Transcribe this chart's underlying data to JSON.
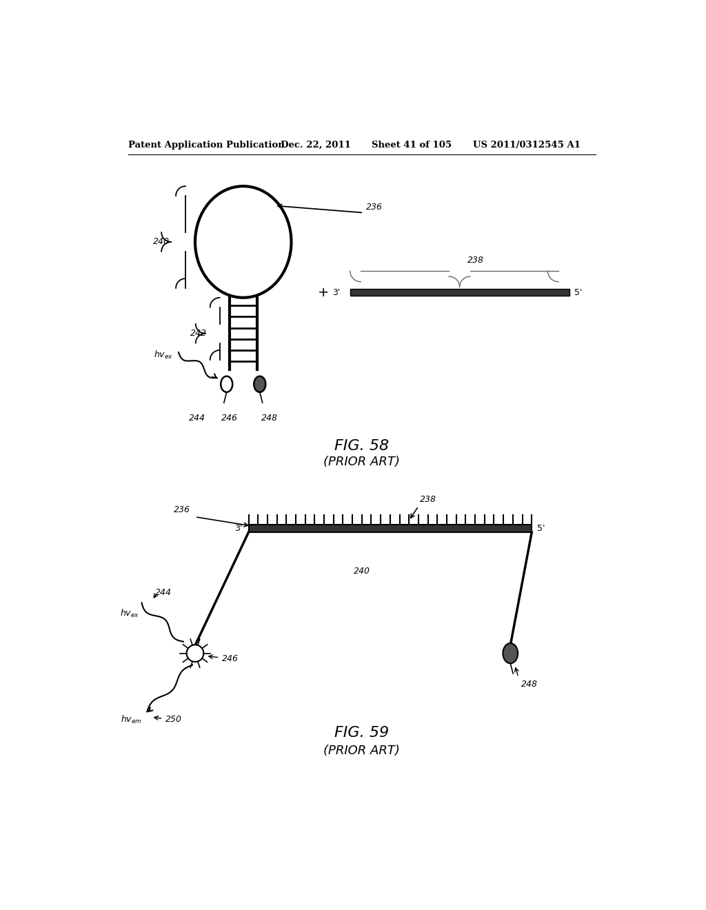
{
  "bg_color": "#ffffff",
  "header_text": "Patent Application Publication",
  "header_date": "Dec. 22, 2011",
  "header_sheet": "Sheet 41 of 105",
  "header_patent": "US 2011/0312545 A1",
  "fig58_title": "FIG. 58",
  "fig58_subtitle": "(PRIOR ART)",
  "fig59_title": "FIG. 59",
  "fig59_subtitle": "(PRIOR ART)",
  "label_236": "236",
  "label_238": "238",
  "label_240": "240",
  "label_242": "242",
  "label_244": "244",
  "label_246": "246",
  "label_248": "248",
  "label_250": "250"
}
